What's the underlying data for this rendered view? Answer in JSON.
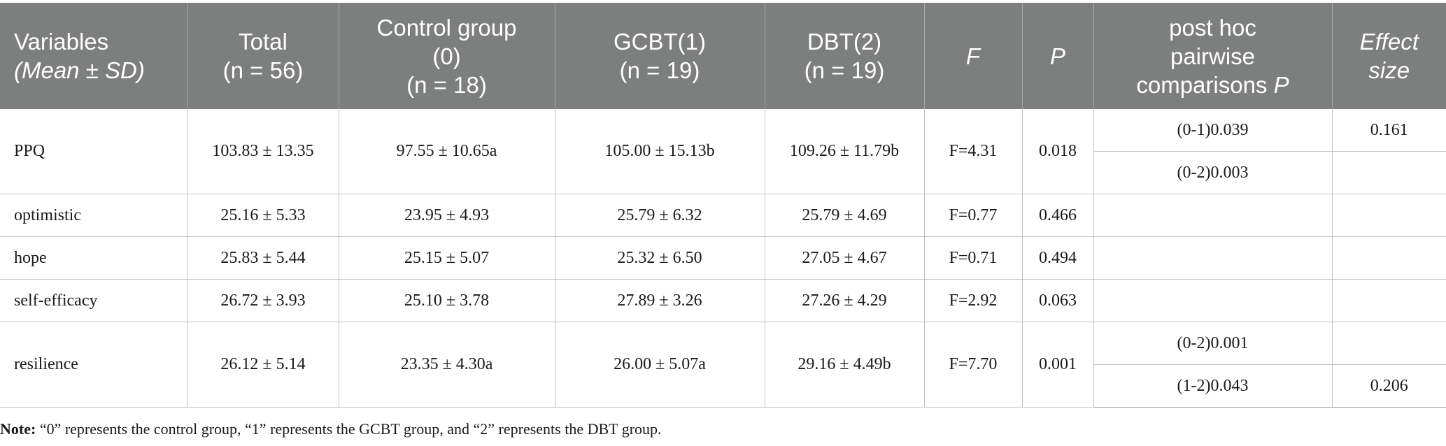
{
  "headers": [
    {
      "line1": "Variables",
      "line2": "(Mean ± SD)",
      "line3": ""
    },
    {
      "line1": "Total",
      "line2": "(n = 56)",
      "line3": ""
    },
    {
      "line1": "Control group",
      "line2": "(0)",
      "line3": "(n = 18)"
    },
    {
      "line1": "GCBT(1)",
      "line2": "(n = 19)",
      "line3": ""
    },
    {
      "line1": "DBT(2)",
      "line2": "(n = 19)",
      "line3": ""
    },
    {
      "line1": "F",
      "line2": "",
      "line3": ""
    },
    {
      "line1": "P",
      "line2": "",
      "line3": ""
    },
    {
      "line1": "post hoc",
      "line2": "pairwise",
      "line3": "comparisons",
      "italic": "P"
    },
    {
      "line1": "Effect",
      "line2": "size",
      "line3": ""
    }
  ],
  "rows": [
    {
      "variable": "PPQ",
      "total": "103.83 ± 13.35",
      "control": "97.55 ± 10.65a",
      "gcbt": "105.00 ± 15.13b",
      "dbt": "109.26 ± 11.79b",
      "f": "F=4.31",
      "p": "0.018",
      "posthoc": [
        "(0-1)0.039",
        "(0-2)0.003"
      ],
      "effect": [
        "0.161",
        ""
      ]
    },
    {
      "variable": "optimistic",
      "total": "25.16 ± 5.33",
      "control": "23.95 ± 4.93",
      "gcbt": "25.79 ± 6.32",
      "dbt": "25.79 ± 4.69",
      "f": "F=0.77",
      "p": "0.466",
      "posthoc": [
        ""
      ],
      "effect": [
        ""
      ]
    },
    {
      "variable": "hope",
      "total": "25.83 ± 5.44",
      "control": "25.15 ± 5.07",
      "gcbt": "25.32 ± 6.50",
      "dbt": "27.05 ± 4.67",
      "f": "F=0.71",
      "p": "0.494",
      "posthoc": [
        ""
      ],
      "effect": [
        ""
      ]
    },
    {
      "variable": "self-efficacy",
      "total": "26.72 ± 3.93",
      "control": "25.10 ± 3.78",
      "gcbt": "27.89 ± 3.26",
      "dbt": "27.26 ± 4.29",
      "f": "F=2.92",
      "p": "0.063",
      "posthoc": [
        ""
      ],
      "effect": [
        ""
      ]
    },
    {
      "variable": "resilience",
      "total": "26.12 ± 5.14",
      "control": "23.35 ± 4.30a",
      "gcbt": "26.00 ± 5.07a",
      "dbt": "29.16 ± 4.49b",
      "f": "F=7.70",
      "p": "0.001",
      "posthoc": [
        "(0-2)0.001",
        "(1-2)0.043"
      ],
      "effect": [
        "",
        "0.206"
      ]
    }
  ],
  "note": {
    "label": "Note:",
    "text": " “0” represents the control group, “1” represents the GCBT group, and “2” represents the DBT group."
  }
}
